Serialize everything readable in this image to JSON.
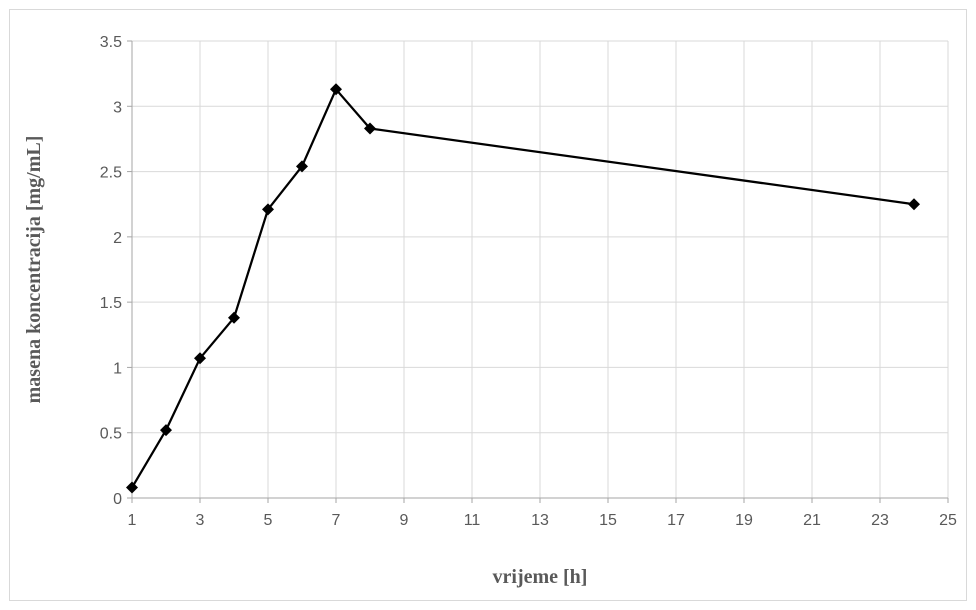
{
  "chart_data": {
    "type": "line",
    "title": "",
    "xlabel": "vrijeme [h]",
    "ylabel": "masena koncentracija [mg/mL]",
    "xlim": [
      1,
      25
    ],
    "ylim": [
      0,
      3.5
    ],
    "x_ticks": [
      1,
      3,
      5,
      7,
      9,
      11,
      13,
      15,
      17,
      19,
      21,
      23,
      25
    ],
    "y_ticks": [
      0,
      0.5,
      1,
      1.5,
      2,
      2.5,
      3,
      3.5
    ],
    "x_tick_labels": [
      "1",
      "3",
      "5",
      "7",
      "9",
      "11",
      "13",
      "15",
      "17",
      "19",
      "21",
      "23",
      "25"
    ],
    "y_tick_labels": [
      "0",
      "0.5",
      "1",
      "1.5",
      "2",
      "2.5",
      "3",
      "3.5"
    ],
    "grid": true,
    "legend": "none",
    "series": [
      {
        "x": [
          1,
          2,
          3,
          4,
          5,
          6,
          7,
          8,
          24
        ],
        "y": [
          0.08,
          0.52,
          1.07,
          1.38,
          2.21,
          2.54,
          3.13,
          2.83,
          2.25
        ],
        "color": "#000000",
        "marker": "diamond"
      }
    ]
  }
}
